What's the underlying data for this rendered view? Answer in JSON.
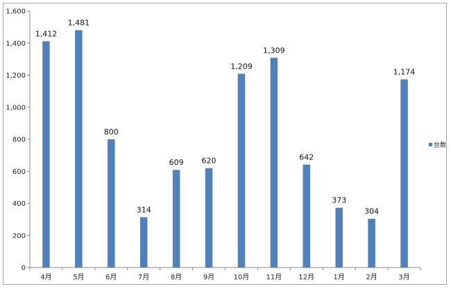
{
  "chart_data": {
    "type": "bar",
    "categories": [
      "4月",
      "5月",
      "6月",
      "7月",
      "8月",
      "9月",
      "10月",
      "11月",
      "12月",
      "1月",
      "2月",
      "3月"
    ],
    "series": [
      {
        "name": "台数",
        "values": [
          1412,
          1481,
          800,
          314,
          609,
          620,
          1209,
          1309,
          642,
          373,
          304,
          1174
        ]
      }
    ],
    "data_labels": [
      "1,412",
      "1,481",
      "800",
      "314",
      "609",
      "620",
      "1,209",
      "1,309",
      "642",
      "373",
      "304",
      "1,174"
    ],
    "y_ticks": [
      "0",
      "200",
      "400",
      "600",
      "800",
      "1,000",
      "1,200",
      "1,400",
      "1,600"
    ],
    "ylim": [
      0,
      1600
    ],
    "grid": false,
    "legend_position": "right",
    "title": "",
    "xlabel": "",
    "ylabel": "",
    "bar_color": "#4f81bd"
  }
}
